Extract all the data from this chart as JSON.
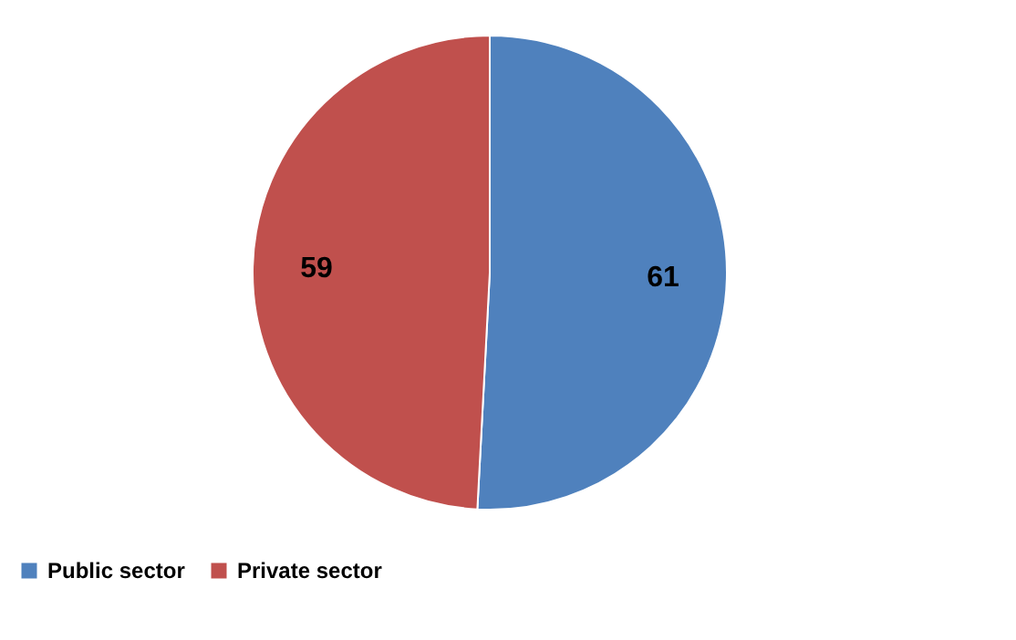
{
  "chart_data": {
    "type": "pie",
    "categories": [
      "Public sector",
      "Private sector"
    ],
    "values": [
      61,
      59
    ],
    "colors": [
      "#4f81bd",
      "#c0504d"
    ],
    "data_labels": true,
    "legend": "bottom"
  }
}
